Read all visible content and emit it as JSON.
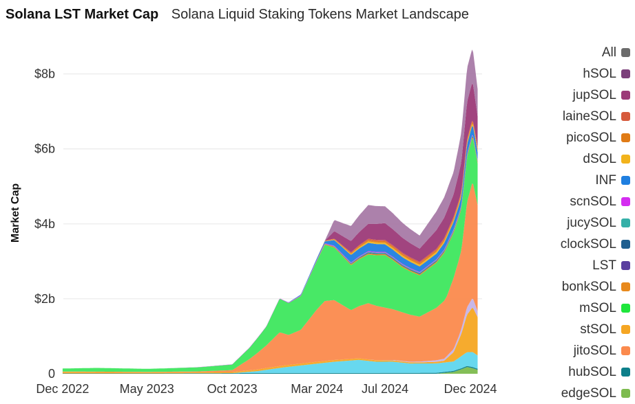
{
  "header": {
    "title": "Solana LST Market Cap",
    "subtitle": "Solana Liquid Staking Tokens Market Landscape"
  },
  "chart_data": {
    "type": "area",
    "stacked": true,
    "title": "Solana LST Market Cap",
    "subtitle": "Solana Liquid Staking Tokens Market Landscape",
    "xlabel": "",
    "ylabel": "Market Cap",
    "ylim": [
      0,
      8.8
    ],
    "y_unit": "billion USD",
    "yticks": [
      {
        "value": 0,
        "label": "0"
      },
      {
        "value": 2,
        "label": "$2b"
      },
      {
        "value": 4,
        "label": "$4b"
      },
      {
        "value": 6,
        "label": "$6b"
      },
      {
        "value": 8,
        "label": "$8b"
      }
    ],
    "x_range": [
      "2022-11-20",
      "2024-12-22"
    ],
    "xticks": [
      {
        "date": "2022-12-01",
        "label": "Dec 2022"
      },
      {
        "date": "2023-05-01",
        "label": "May 2023"
      },
      {
        "date": "2023-10-01",
        "label": "Oct 2023"
      },
      {
        "date": "2024-03-01",
        "label": "Mar 2024"
      },
      {
        "date": "2024-07-01",
        "label": "Jul 2024"
      },
      {
        "date": "2024-12-01",
        "label": "Dec 2024"
      }
    ],
    "grid": true,
    "legend_position": "right",
    "legend": [
      {
        "name": "All",
        "color": "#6b6b6b"
      },
      {
        "name": "hSOL",
        "color": "#7b3f7a"
      },
      {
        "name": "jupSOL",
        "color": "#9c3a78"
      },
      {
        "name": "laineSOL",
        "color": "#d65a3c"
      },
      {
        "name": "picoSOL",
        "color": "#e07b16"
      },
      {
        "name": "dSOL",
        "color": "#f2b31c"
      },
      {
        "name": "INF",
        "color": "#1f7fe0"
      },
      {
        "name": "scnSOL",
        "color": "#d42df0"
      },
      {
        "name": "jucySOL",
        "color": "#35b0a8"
      },
      {
        "name": "clockSOL",
        "color": "#1f5f8f"
      },
      {
        "name": "LST",
        "color": "#5a3fa0"
      },
      {
        "name": "bonkSOL",
        "color": "#e8891c"
      },
      {
        "name": "mSOL",
        "color": "#1fe63c"
      },
      {
        "name": "stSOL",
        "color": "#f5a623"
      },
      {
        "name": "jitoSOL",
        "color": "#fb8a4d"
      },
      {
        "name": "hubSOL",
        "color": "#0d7f8a"
      },
      {
        "name": "edgeSOL",
        "color": "#7dbb4e"
      }
    ],
    "series": [
      {
        "name": "edgeSOL",
        "color": "#7dbb4e",
        "x": [
          "2024-10-01",
          "2024-11-01",
          "2024-11-15",
          "2024-11-25",
          "2024-12-05",
          "2024-12-15"
        ],
        "values": [
          0.0,
          0.05,
          0.12,
          0.18,
          0.15,
          0.1
        ]
      },
      {
        "name": "hubSOL",
        "color": "#0d7f8a",
        "x": [
          "2022-12-01",
          "2023-06-01",
          "2023-12-01",
          "2024-06-01",
          "2024-12-15"
        ],
        "values": [
          0.01,
          0.01,
          0.02,
          0.02,
          0.03
        ]
      },
      {
        "name": "INF",
        "color": "#5fd6ee",
        "x": [
          "2023-10-01",
          "2023-11-15",
          "2024-01-01",
          "2024-03-01",
          "2024-04-01",
          "2024-05-15",
          "2024-06-15",
          "2024-07-15",
          "2024-08-15",
          "2024-09-15",
          "2024-10-15",
          "2024-11-01",
          "2024-11-20",
          "2024-12-05",
          "2024-12-15"
        ],
        "values": [
          0.0,
          0.05,
          0.15,
          0.25,
          0.3,
          0.35,
          0.3,
          0.3,
          0.25,
          0.25,
          0.25,
          0.25,
          0.35,
          0.4,
          0.35
        ]
      },
      {
        "name": "stSOL",
        "color": "#f5a623",
        "x": [
          "2022-12-01",
          "2023-06-01",
          "2023-10-01",
          "2023-12-01",
          "2024-03-01",
          "2024-06-01",
          "2024-09-01",
          "2024-10-15",
          "2024-11-01",
          "2024-11-15",
          "2024-11-25",
          "2024-12-05",
          "2024-12-15"
        ],
        "values": [
          0.04,
          0.03,
          0.03,
          0.05,
          0.05,
          0.04,
          0.03,
          0.05,
          0.25,
          0.6,
          1.0,
          1.2,
          1.0
        ]
      },
      {
        "name": "LST",
        "color": "#c5b3e8",
        "x": [
          "2024-06-01",
          "2024-09-01",
          "2024-10-15",
          "2024-11-10",
          "2024-11-25",
          "2024-12-05",
          "2024-12-15"
        ],
        "values": [
          0.0,
          0.02,
          0.05,
          0.1,
          0.2,
          0.25,
          0.15
        ]
      },
      {
        "name": "jitoSOL",
        "color": "#fb8a4d",
        "x": [
          "2022-12-01",
          "2023-05-01",
          "2023-08-01",
          "2023-10-01",
          "2023-11-01",
          "2023-12-01",
          "2023-12-25",
          "2024-01-10",
          "2024-02-01",
          "2024-03-01",
          "2024-03-15",
          "2024-04-01",
          "2024-05-01",
          "2024-06-01",
          "2024-07-01",
          "2024-08-01",
          "2024-09-01",
          "2024-10-01",
          "2024-10-20",
          "2024-11-01",
          "2024-11-15",
          "2024-11-25",
          "2024-12-05",
          "2024-12-15"
        ],
        "values": [
          0.01,
          0.01,
          0.02,
          0.05,
          0.3,
          0.6,
          0.9,
          0.8,
          0.9,
          1.4,
          1.6,
          1.6,
          1.3,
          1.5,
          1.4,
          1.3,
          1.2,
          1.4,
          1.6,
          1.9,
          2.1,
          2.8,
          3.1,
          2.8
        ]
      },
      {
        "name": "mSOL",
        "color": "#3ee75e",
        "x": [
          "2022-12-01",
          "2023-02-01",
          "2023-05-01",
          "2023-08-01",
          "2023-10-01",
          "2023-11-01",
          "2023-12-01",
          "2023-12-25",
          "2024-01-10",
          "2024-02-01",
          "2024-03-01",
          "2024-03-15",
          "2024-04-01",
          "2024-05-01",
          "2024-06-01",
          "2024-07-01",
          "2024-08-01",
          "2024-09-01",
          "2024-10-01",
          "2024-10-20",
          "2024-11-01",
          "2024-11-15",
          "2024-11-25",
          "2024-12-05",
          "2024-12-15"
        ],
        "values": [
          0.08,
          0.1,
          0.08,
          0.11,
          0.15,
          0.3,
          0.5,
          0.9,
          0.85,
          0.9,
          1.3,
          1.5,
          1.4,
          1.2,
          1.3,
          1.4,
          1.2,
          1.1,
          1.2,
          1.3,
          1.2,
          1.1,
          1.2,
          1.2,
          1.1
        ]
      },
      {
        "name": "bonkSOL",
        "color": "#e8891c",
        "x": [
          "2024-01-01",
          "2024-03-15",
          "2024-06-01",
          "2024-09-01",
          "2024-12-15"
        ],
        "values": [
          0.0,
          0.02,
          0.03,
          0.03,
          0.04
        ]
      },
      {
        "name": "clockSOL",
        "color": "#1f5f8f",
        "x": [
          "2024-03-01",
          "2024-06-01",
          "2024-12-15"
        ],
        "values": [
          0.0,
          0.02,
          0.02
        ]
      },
      {
        "name": "jucySOL",
        "color": "#35b0a8",
        "x": [
          "2024-03-01",
          "2024-06-01",
          "2024-12-15"
        ],
        "values": [
          0.0,
          0.02,
          0.02
        ]
      },
      {
        "name": "scnSOL",
        "color": "#d42df0",
        "x": [
          "2022-12-01",
          "2023-06-01",
          "2024-01-01",
          "2024-06-01",
          "2024-12-15"
        ],
        "values": [
          0.0,
          0.0,
          0.01,
          0.02,
          0.02
        ]
      },
      {
        "name": "INF",
        "color": "#1f7fe0",
        "x": [
          "2024-01-01",
          "2024-03-15",
          "2024-04-01",
          "2024-05-01",
          "2024-06-01",
          "2024-07-01",
          "2024-08-01",
          "2024-09-01",
          "2024-10-01",
          "2024-11-01",
          "2024-12-01",
          "2024-12-15"
        ],
        "values": [
          0.0,
          0.05,
          0.15,
          0.2,
          0.22,
          0.2,
          0.18,
          0.15,
          0.15,
          0.2,
          0.25,
          0.2
        ]
      },
      {
        "name": "dSOL",
        "color": "#f2b31c",
        "x": [
          "2024-03-01",
          "2024-06-01",
          "2024-12-15"
        ],
        "values": [
          0.0,
          0.04,
          0.05
        ]
      },
      {
        "name": "picoSOL",
        "color": "#e07b16",
        "x": [
          "2024-03-01",
          "2024-06-01",
          "2024-12-15"
        ],
        "values": [
          0.0,
          0.04,
          0.05
        ]
      },
      {
        "name": "laineSOL",
        "color": "#d65a3c",
        "x": [
          "2024-03-01",
          "2024-06-01",
          "2024-12-15"
        ],
        "values": [
          0.0,
          0.03,
          0.04
        ]
      },
      {
        "name": "jupSOL",
        "color": "#9c3a78",
        "x": [
          "2024-03-15",
          "2024-04-01",
          "2024-05-01",
          "2024-06-01",
          "2024-07-01",
          "2024-08-01",
          "2024-09-01",
          "2024-10-01",
          "2024-11-01",
          "2024-11-15",
          "2024-11-25",
          "2024-12-05",
          "2024-12-15"
        ],
        "values": [
          0.0,
          0.2,
          0.3,
          0.4,
          0.45,
          0.4,
          0.35,
          0.5,
          0.6,
          0.8,
          1.0,
          1.0,
          0.8
        ]
      },
      {
        "name": "hSOL",
        "color": "#a87aa6",
        "x": [
          "2024-03-15",
          "2024-04-01",
          "2024-05-01",
          "2024-06-01",
          "2024-07-01",
          "2024-08-01",
          "2024-09-01",
          "2024-10-01",
          "2024-11-01",
          "2024-11-15",
          "2024-11-25",
          "2024-12-05",
          "2024-12-15"
        ],
        "values": [
          0.0,
          0.3,
          0.4,
          0.5,
          0.45,
          0.4,
          0.35,
          0.5,
          0.6,
          0.8,
          0.9,
          0.9,
          0.7
        ]
      }
    ]
  }
}
